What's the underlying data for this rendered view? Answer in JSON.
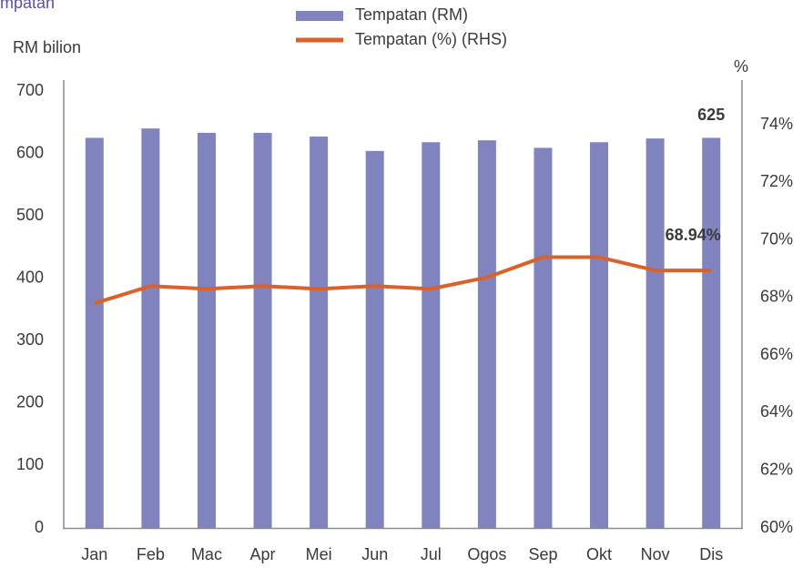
{
  "chart_data": {
    "type": "bar_line",
    "title": "mpatan",
    "y_label": "RM bilion",
    "y2_label": "%",
    "categories": [
      "Jan",
      "Feb",
      "Mac",
      "Apr",
      "Mei",
      "Jun",
      "Jul",
      "Ogos",
      "Sep",
      "Okt",
      "Nov",
      "Dis"
    ],
    "series": [
      {
        "name": "Tempatan (RM)",
        "type": "bar",
        "color": "#8083bd",
        "values": [
          625,
          640,
          633,
          633,
          627,
          604,
          618,
          621,
          609,
          618,
          624,
          625
        ]
      },
      {
        "name": "Tempatan (%) (RHS)",
        "type": "line",
        "axis": "y2",
        "color": "#d9622b",
        "values": [
          67.8,
          68.4,
          68.3,
          68.4,
          68.3,
          68.4,
          68.3,
          68.7,
          69.4,
          69.4,
          68.94,
          68.94
        ],
        "value_labels": [
          null,
          null,
          null,
          null,
          null,
          null,
          null,
          null,
          null,
          null,
          null,
          "68.94%"
        ]
      }
    ],
    "ylim": [
      0,
      700
    ],
    "yticks": [
      0,
      100,
      200,
      300,
      400,
      500,
      600,
      700
    ],
    "y2lim": [
      60,
      74
    ],
    "y2ticks": [
      {
        "value": 60,
        "label": "60%"
      },
      {
        "value": 62,
        "label": "62%"
      },
      {
        "value": 64,
        "label": "64%"
      },
      {
        "value": 66,
        "label": "66%"
      },
      {
        "value": 68,
        "label": "68%"
      },
      {
        "value": 70,
        "label": "70%"
      },
      {
        "value": 72,
        "label": "72%"
      },
      {
        "value": 74,
        "label": "74%"
      }
    ]
  }
}
